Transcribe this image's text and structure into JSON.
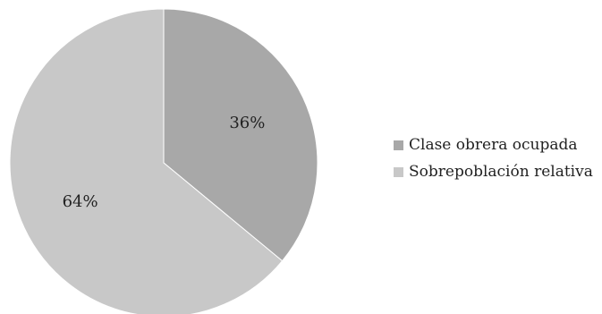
{
  "chart_data": {
    "type": "pie",
    "categories": [
      "Clase obrera ocupada",
      "Sobrepoblación relativa"
    ],
    "values": [
      36,
      64
    ],
    "data_labels": [
      "36%",
      "64%"
    ],
    "colors": [
      "#a8a8a8",
      "#c8c8c8"
    ],
    "start_angle_deg": 0,
    "direction": "clockwise",
    "legend_position": "right"
  }
}
